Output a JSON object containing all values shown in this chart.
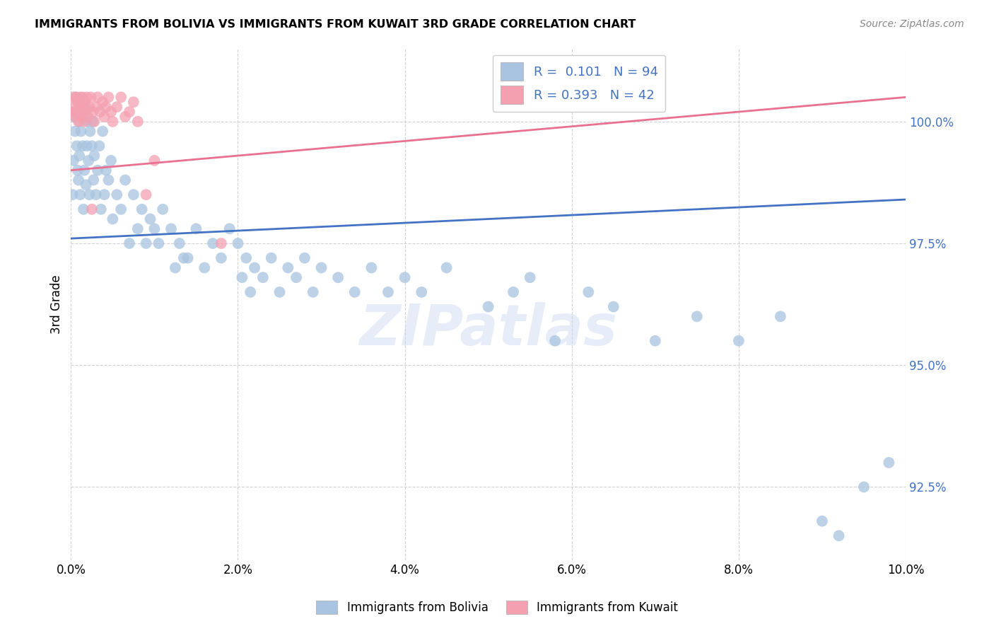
{
  "title": "IMMIGRANTS FROM BOLIVIA VS IMMIGRANTS FROM KUWAIT 3RD GRADE CORRELATION CHART",
  "source": "Source: ZipAtlas.com",
  "ylabel": "3rd Grade",
  "y_ticks": [
    92.5,
    95.0,
    97.5,
    100.0
  ],
  "y_tick_labels": [
    "92.5%",
    "95.0%",
    "97.5%",
    "100.0%"
  ],
  "xmin": 0.0,
  "xmax": 10.0,
  "ymin": 91.0,
  "ymax": 101.5,
  "legend_r_blue": "0.101",
  "legend_n_blue": "94",
  "legend_r_pink": "0.393",
  "legend_n_pink": "42",
  "blue_color": "#a8c4e0",
  "pink_color": "#f4a0b0",
  "blue_line_color": "#4472c4",
  "pink_line_color": "#e87090",
  "watermark": "ZIPatlas",
  "bolivia_x": [
    0.02,
    0.03,
    0.04,
    0.05,
    0.06,
    0.07,
    0.07,
    0.08,
    0.09,
    0.1,
    0.1,
    0.11,
    0.12,
    0.13,
    0.14,
    0.15,
    0.16,
    0.17,
    0.18,
    0.19,
    0.2,
    0.21,
    0.22,
    0.23,
    0.25,
    0.26,
    0.27,
    0.28,
    0.3,
    0.32,
    0.34,
    0.36,
    0.38,
    0.4,
    0.42,
    0.45,
    0.48,
    0.5,
    0.55,
    0.6,
    0.65,
    0.7,
    0.75,
    0.8,
    0.85,
    0.9,
    0.95,
    1.0,
    1.05,
    1.1,
    1.2,
    1.3,
    1.4,
    1.5,
    1.6,
    1.7,
    1.8,
    1.9,
    2.0,
    2.1,
    2.2,
    2.3,
    2.4,
    2.5,
    2.6,
    2.7,
    2.8,
    2.9,
    3.0,
    3.2,
    3.4,
    3.6,
    3.8,
    4.0,
    4.2,
    4.5,
    5.0,
    5.3,
    5.5,
    5.8,
    6.2,
    6.5,
    7.0,
    7.5,
    8.0,
    8.5,
    9.0,
    9.2,
    9.5,
    9.8,
    2.05,
    2.15,
    1.25,
    1.35
  ],
  "bolivia_y": [
    98.5,
    99.2,
    100.1,
    99.8,
    100.5,
    99.5,
    100.2,
    99.0,
    98.8,
    100.0,
    99.3,
    98.5,
    99.8,
    100.1,
    99.5,
    98.2,
    99.0,
    100.3,
    98.7,
    99.5,
    100.0,
    99.2,
    98.5,
    99.8,
    99.5,
    100.0,
    98.8,
    99.3,
    98.5,
    99.0,
    99.5,
    98.2,
    99.8,
    98.5,
    99.0,
    98.8,
    99.2,
    98.0,
    98.5,
    98.2,
    98.8,
    97.5,
    98.5,
    97.8,
    98.2,
    97.5,
    98.0,
    97.8,
    97.5,
    98.2,
    97.8,
    97.5,
    97.2,
    97.8,
    97.0,
    97.5,
    97.2,
    97.8,
    97.5,
    97.2,
    97.0,
    96.8,
    97.2,
    96.5,
    97.0,
    96.8,
    97.2,
    96.5,
    97.0,
    96.8,
    96.5,
    97.0,
    96.5,
    96.8,
    96.5,
    97.0,
    96.2,
    96.5,
    96.8,
    95.5,
    96.5,
    96.2,
    95.5,
    96.0,
    95.5,
    96.0,
    91.8,
    91.5,
    92.5,
    93.0,
    96.8,
    96.5,
    97.0,
    97.2
  ],
  "kuwait_x": [
    0.02,
    0.03,
    0.04,
    0.05,
    0.06,
    0.07,
    0.08,
    0.09,
    0.1,
    0.11,
    0.12,
    0.13,
    0.14,
    0.15,
    0.16,
    0.17,
    0.18,
    0.19,
    0.2,
    0.22,
    0.24,
    0.26,
    0.28,
    0.3,
    0.32,
    0.35,
    0.38,
    0.4,
    0.42,
    0.45,
    0.48,
    0.5,
    0.55,
    0.6,
    0.65,
    0.7,
    0.75,
    0.8,
    0.9,
    1.0,
    1.8,
    0.25
  ],
  "kuwait_y": [
    100.2,
    100.5,
    100.3,
    100.1,
    100.5,
    100.2,
    100.4,
    100.0,
    100.3,
    100.5,
    100.1,
    100.3,
    100.5,
    100.2,
    100.0,
    100.4,
    100.2,
    100.5,
    100.1,
    100.3,
    100.5,
    100.2,
    100.0,
    100.3,
    100.5,
    100.2,
    100.4,
    100.1,
    100.3,
    100.5,
    100.2,
    100.0,
    100.3,
    100.5,
    100.1,
    100.2,
    100.4,
    100.0,
    98.5,
    99.2,
    97.5,
    98.2
  ],
  "blue_reg_x0": 0.0,
  "blue_reg_x1": 10.0,
  "blue_reg_y0": 97.6,
  "blue_reg_y1": 98.4,
  "pink_reg_x0": 0.0,
  "pink_reg_x1": 10.0,
  "pink_reg_y0": 99.0,
  "pink_reg_y1": 100.5
}
